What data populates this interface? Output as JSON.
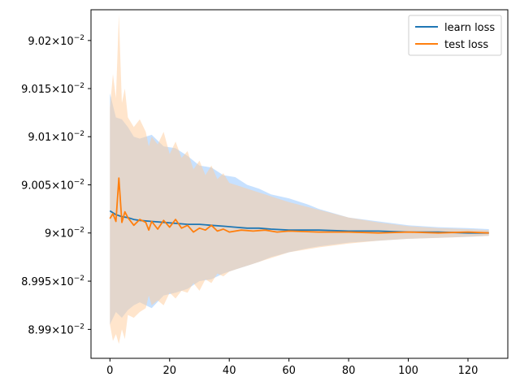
{
  "chart_data": {
    "type": "line",
    "title": "",
    "xlabel": "",
    "ylabel": "",
    "xlim": [
      -6.35,
      133.35
    ],
    "ylim": [
      0.08987,
      0.090232
    ],
    "yscale": "log",
    "grid": false,
    "legend_position": "top-right",
    "x_ticks": [
      0,
      20,
      40,
      60,
      80,
      100,
      120
    ],
    "y_ticks": [
      {
        "value": 0.0899,
        "mantissa": "8.99",
        "base": "10",
        "exp": "−2"
      },
      {
        "value": 0.08995,
        "mantissa": "8.995",
        "base": "10",
        "exp": "−2"
      },
      {
        "value": 0.09,
        "mantissa": "9",
        "base": "10",
        "exp": "−2"
      },
      {
        "value": 0.09005,
        "mantissa": "9.005",
        "base": "10",
        "exp": "−2"
      },
      {
        "value": 0.0901,
        "mantissa": "9.01",
        "base": "10",
        "exp": "−2"
      },
      {
        "value": 0.09015,
        "mantissa": "9.015",
        "base": "10",
        "exp": "−2"
      },
      {
        "value": 0.0902,
        "mantissa": "9.02",
        "base": "10",
        "exp": "−2"
      }
    ],
    "series": [
      {
        "name": "learn loss",
        "color": "#1f77b4",
        "band_color": "#99c8ff",
        "x": [
          0,
          2,
          4,
          6,
          8,
          10,
          14,
          18,
          22,
          26,
          30,
          34,
          38,
          42,
          46,
          50,
          54,
          60,
          66,
          70,
          80,
          90,
          100,
          110,
          120,
          127
        ],
        "values": [
          0.090023,
          0.090019,
          0.090017,
          0.090016,
          0.090014,
          0.090013,
          0.090012,
          0.090011,
          0.09001,
          0.090009,
          0.090009,
          0.090008,
          0.090007,
          0.090006,
          0.090005,
          0.090005,
          0.090004,
          0.090003,
          0.090003,
          0.090003,
          0.090002,
          0.090002,
          0.090001,
          0.090001,
          0.09,
          0.09
        ],
        "band_upper": [
          0.090145,
          0.09012,
          0.090118,
          0.09011,
          0.0901,
          0.090098,
          0.090102,
          0.09009,
          0.090088,
          0.09008,
          0.09007,
          0.090068,
          0.09006,
          0.090058,
          0.09005,
          0.090046,
          0.09004,
          0.090036,
          0.09003,
          0.090025,
          0.090016,
          0.090012,
          0.090008,
          0.090006,
          0.090005,
          0.090004
        ],
        "band_lower": [
          0.089905,
          0.089918,
          0.089912,
          0.08992,
          0.089925,
          0.089928,
          0.089922,
          0.089935,
          0.089938,
          0.089942,
          0.08995,
          0.089952,
          0.089958,
          0.089962,
          0.089966,
          0.08997,
          0.089975,
          0.08998,
          0.089984,
          0.089986,
          0.08999,
          0.089992,
          0.089994,
          0.089995,
          0.089996,
          0.089997
        ]
      },
      {
        "name": "test loss",
        "color": "#ff7f0e",
        "band_color": "#ffcc99",
        "x": [
          0,
          1,
          2,
          3,
          4,
          5,
          6,
          8,
          10,
          12,
          13,
          14,
          16,
          18,
          20,
          22,
          24,
          26,
          28,
          30,
          32,
          34,
          36,
          38,
          40,
          44,
          48,
          52,
          56,
          60,
          70,
          80,
          90,
          100,
          110,
          120,
          127
        ],
        "values": [
          0.090015,
          0.09002,
          0.090012,
          0.090057,
          0.090011,
          0.090022,
          0.090016,
          0.090008,
          0.090014,
          0.090011,
          0.090003,
          0.090012,
          0.090004,
          0.090013,
          0.090006,
          0.090014,
          0.090005,
          0.090008,
          0.090001,
          0.090005,
          0.090003,
          0.090008,
          0.090002,
          0.090004,
          0.090001,
          0.090003,
          0.090002,
          0.090003,
          0.090001,
          0.090002,
          0.090001,
          0.090001,
          0.09,
          0.090001,
          0.09,
          0.090001,
          0.09
        ],
        "band_upper": [
          0.09013,
          0.090165,
          0.09014,
          0.090227,
          0.090135,
          0.09015,
          0.09012,
          0.09011,
          0.090118,
          0.090105,
          0.09009,
          0.0901,
          0.090092,
          0.090105,
          0.090082,
          0.090095,
          0.090078,
          0.090085,
          0.090066,
          0.090075,
          0.09006,
          0.09007,
          0.090056,
          0.090062,
          0.090052,
          0.090048,
          0.090044,
          0.09004,
          0.090036,
          0.090032,
          0.090024,
          0.090016,
          0.090011,
          0.090007,
          0.090005,
          0.090004,
          0.090003
        ],
        "band_lower": [
          0.089905,
          0.089888,
          0.089895,
          0.089885,
          0.0899,
          0.08989,
          0.089915,
          0.089912,
          0.089918,
          0.089922,
          0.089935,
          0.089925,
          0.08993,
          0.089925,
          0.089938,
          0.089932,
          0.08994,
          0.089938,
          0.089948,
          0.08994,
          0.089952,
          0.089948,
          0.089958,
          0.089955,
          0.08996,
          0.089964,
          0.089968,
          0.089972,
          0.089976,
          0.08998,
          0.089985,
          0.089989,
          0.089992,
          0.089994,
          0.089995,
          0.089996,
          0.089997
        ]
      }
    ]
  }
}
